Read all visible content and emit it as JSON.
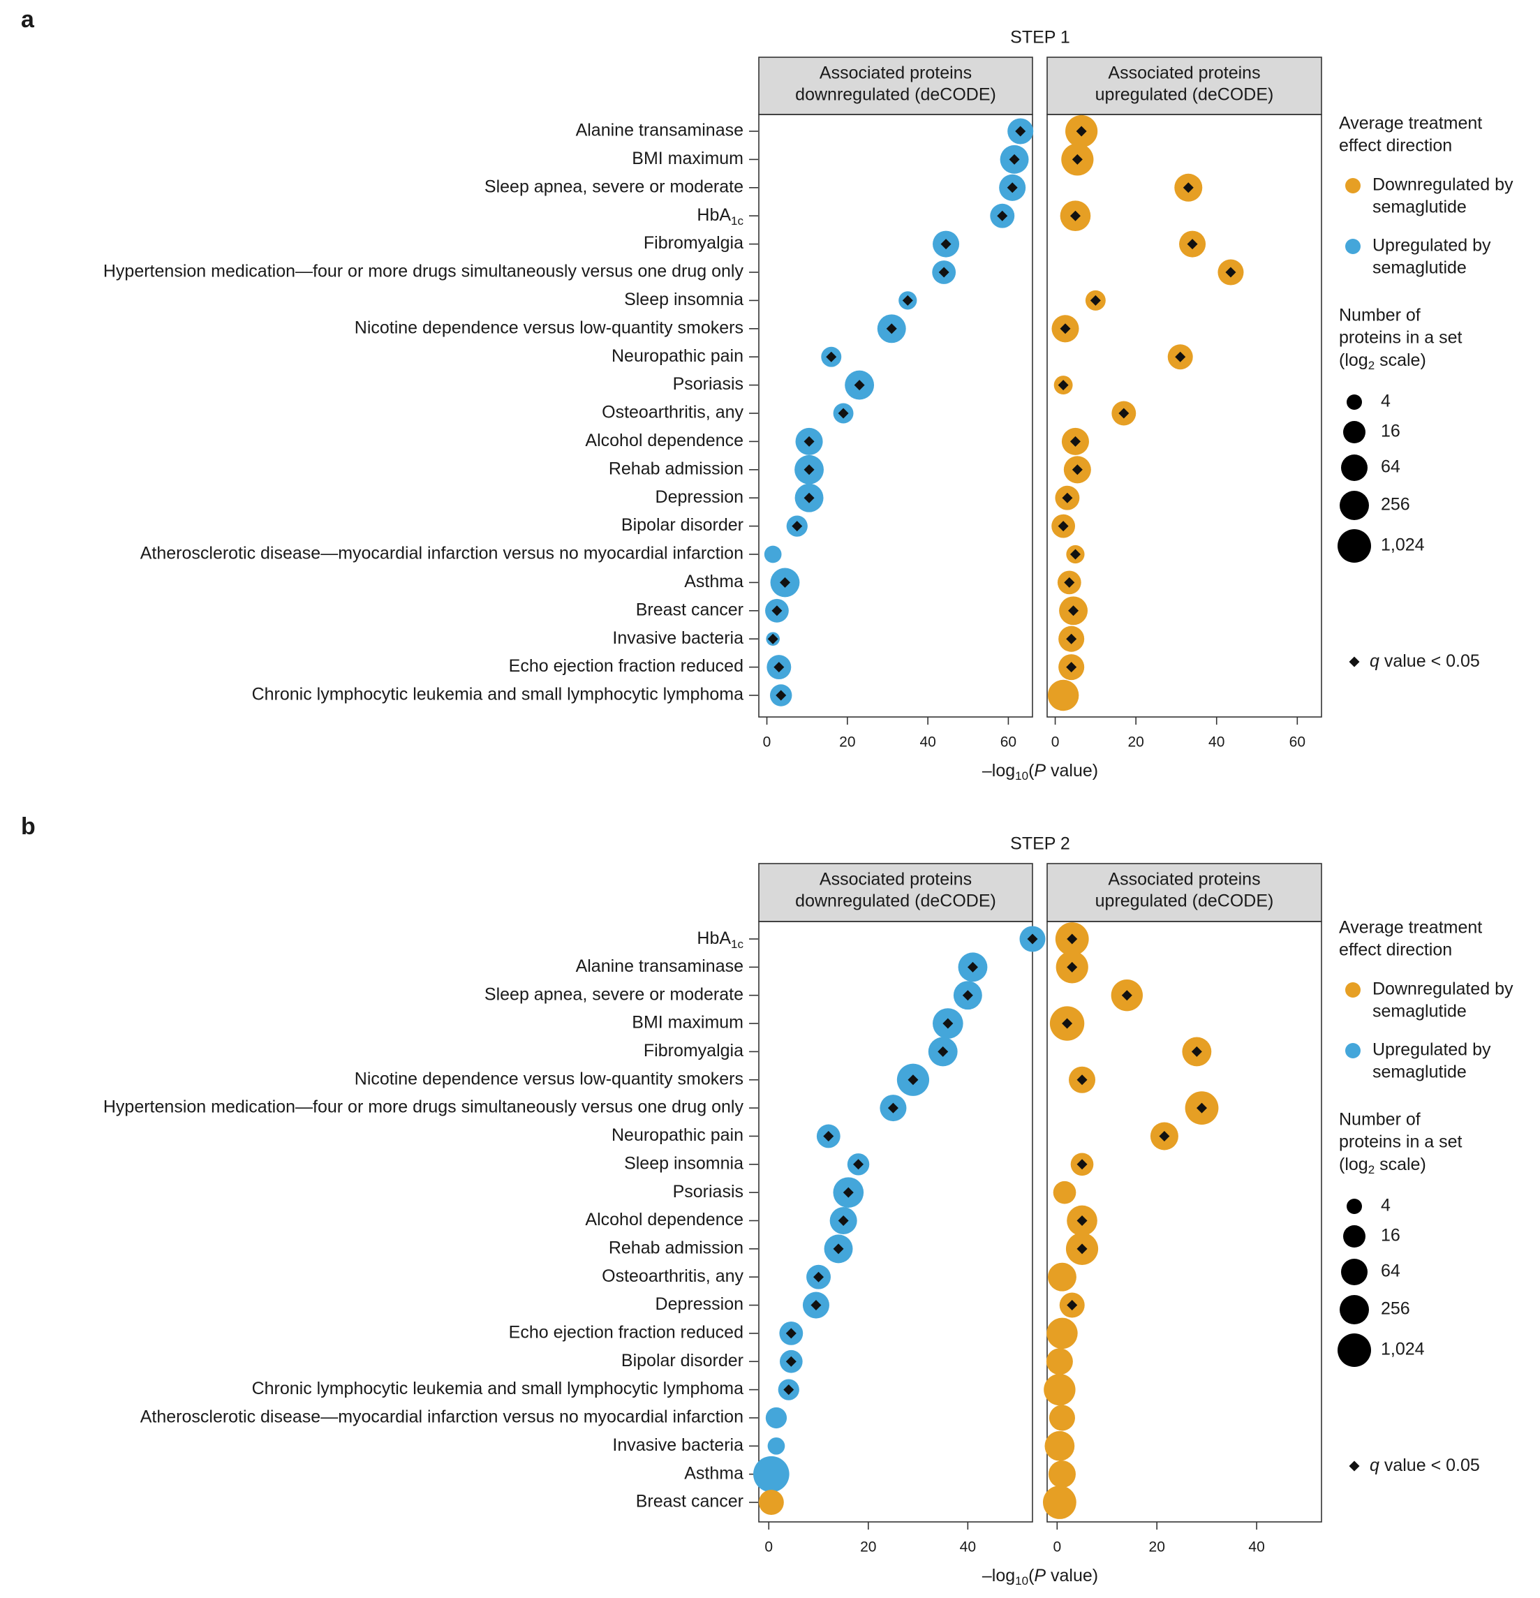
{
  "figure": {
    "legend": {
      "direction_title": [
        "Average treatment",
        "effect direction"
      ],
      "direction_items": [
        {
          "label": [
            "Downregulated by",
            "semaglutide"
          ],
          "color": "#E69F24",
          "key": "down"
        },
        {
          "label": [
            "Upregulated by",
            "semaglutide"
          ],
          "color": "#44A6DA",
          "key": "up"
        }
      ],
      "size_title": [
        "Number of",
        "proteins in a set",
        "(log",
        "2",
        " scale)"
      ],
      "size_items": [
        {
          "label": "4",
          "value": 4
        },
        {
          "label": "16",
          "value": 16
        },
        {
          "label": "64",
          "value": 64
        },
        {
          "label": "256",
          "value": 256
        },
        {
          "label": "1,024",
          "value": 1024
        }
      ],
      "q_label": "q",
      "q_text": " value < 0.05"
    }
  },
  "chart_data": [
    {
      "type": "scatter",
      "panel_letter": "a",
      "title": "STEP 1",
      "xlabel_prefix": "–log",
      "xlabel_sub": "10",
      "xlabel_paren": "(",
      "xlabel_italic": "P",
      "xlabel_suffix": " value)",
      "xlim": [
        -2,
        66
      ],
      "xticks": [
        0,
        20,
        40,
        60
      ],
      "facets": [
        "Associated proteins downregulated (deCODE)",
        "Associated proteins upregulated (deCODE)"
      ],
      "facet_lines": [
        [
          "Associated proteins",
          "downregulated (deCODE)"
        ],
        [
          "Associated proteins",
          "upregulated (deCODE)"
        ]
      ],
      "categories": [
        "Alanine transaminase",
        "BMI maximum",
        "Sleep apnea, severe or moderate",
        "HbA1c",
        "Fibromyalgia",
        "Hypertension medication—four or more drugs simultaneously versus one drug only",
        "Sleep insomnia",
        "Nicotine dependence versus low-quantity smokers",
        "Neuropathic pain",
        "Psoriasis",
        "Osteoarthritis, any",
        "Alcohol dependence",
        "Rehab admission",
        "Depression",
        "Bipolar disorder",
        "Atherosclerotic disease—myocardial infarction versus no myocardial infarction",
        "Asthma",
        "Breast cancer",
        "Invasive bacteria",
        "Echo ejection fraction reduced",
        "Chronic lymphocytic leukemia and small lymphocytic lymphoma"
      ],
      "series": [
        {
          "name": "Associated proteins downregulated (deCODE)",
          "values": [
            63,
            61.5,
            61,
            58.5,
            44.5,
            44,
            35,
            31,
            16,
            23,
            19,
            10.5,
            10.5,
            10.5,
            7.5,
            1.5,
            4.5,
            2.5,
            1.5,
            3,
            3.5
          ],
          "sizes": [
            180,
            220,
            190,
            160,
            190,
            150,
            90,
            220,
            110,
            230,
            110,
            200,
            230,
            220,
            120,
            80,
            230,
            150,
            50,
            160,
            130
          ],
          "direction": [
            "up",
            "up",
            "up",
            "up",
            "up",
            "up",
            "up",
            "up",
            "up",
            "up",
            "up",
            "up",
            "up",
            "up",
            "up",
            "up",
            "up",
            "up",
            "up",
            "up",
            "up"
          ],
          "significant": [
            true,
            true,
            true,
            true,
            true,
            true,
            true,
            true,
            true,
            true,
            true,
            true,
            true,
            true,
            true,
            false,
            true,
            true,
            true,
            true,
            true
          ]
        },
        {
          "name": "Associated proteins upregulated (deCODE)",
          "values": [
            6.5,
            5.5,
            33,
            5,
            34,
            43.5,
            10,
            2.5,
            31,
            2,
            17,
            5,
            5.5,
            3,
            2,
            5,
            3.5,
            4.5,
            4,
            4,
            2
          ],
          "sizes": [
            280,
            280,
            210,
            250,
            190,
            180,
            110,
            200,
            170,
            95,
            160,
            200,
            200,
            160,
            150,
            90,
            150,
            220,
            180,
            180,
            260
          ],
          "direction": [
            "down",
            "down",
            "down",
            "down",
            "down",
            "down",
            "down",
            "down",
            "down",
            "down",
            "down",
            "down",
            "down",
            "down",
            "down",
            "down",
            "down",
            "down",
            "down",
            "down",
            "down"
          ],
          "significant": [
            true,
            true,
            true,
            true,
            true,
            true,
            true,
            true,
            true,
            true,
            true,
            true,
            true,
            true,
            true,
            true,
            true,
            true,
            true,
            true,
            false
          ]
        }
      ]
    },
    {
      "type": "scatter",
      "panel_letter": "b",
      "title": "STEP 2",
      "xlabel_prefix": "–log",
      "xlabel_sub": "10",
      "xlabel_paren": "(",
      "xlabel_italic": "P",
      "xlabel_suffix": " value)",
      "xlim": [
        -2,
        53
      ],
      "xticks": [
        0,
        20,
        40
      ],
      "facets": [
        "Associated proteins downregulated (deCODE)",
        "Associated proteins upregulated (deCODE)"
      ],
      "facet_lines": [
        [
          "Associated proteins",
          "downregulated (deCODE)"
        ],
        [
          "Associated proteins",
          "upregulated (deCODE)"
        ]
      ],
      "categories": [
        "HbA1c",
        "Alanine transaminase",
        "Sleep apnea, severe or moderate",
        "BMI maximum",
        "Fibromyalgia",
        "Nicotine dependence versus low-quantity smokers",
        "Hypertension medication—four or more drugs simultaneously versus one drug only",
        "Neuropathic pain",
        "Sleep insomnia",
        "Psoriasis",
        "Alcohol dependence",
        "Rehab admission",
        "Osteoarthritis, any",
        "Depression",
        "Echo ejection fraction reduced",
        "Bipolar disorder",
        "Chronic lymphocytic leukemia and small lymphocytic lymphoma",
        "Atherosclerotic disease—myocardial infarction versus no myocardial infarction",
        "Invasive bacteria",
        "Asthma",
        "Breast cancer"
      ],
      "series": [
        {
          "name": "Associated proteins downregulated (deCODE)",
          "values": [
            53,
            41,
            40,
            36,
            35,
            29,
            25,
            12,
            18,
            16,
            15,
            14,
            10,
            9.5,
            4.5,
            4.5,
            4,
            1.5,
            1.5,
            0.5,
            0.5
          ],
          "sizes": [
            180,
            230,
            220,
            250,
            230,
            280,
            190,
            150,
            130,
            250,
            200,
            220,
            160,
            190,
            150,
            140,
            120,
            120,
            80,
            350,
            170
          ],
          "direction": [
            "up",
            "up",
            "up",
            "up",
            "up",
            "up",
            "up",
            "up",
            "up",
            "up",
            "up",
            "up",
            "up",
            "up",
            "up",
            "up",
            "up",
            "up",
            "up",
            "up",
            "down"
          ],
          "significant": [
            true,
            true,
            true,
            true,
            true,
            true,
            true,
            true,
            true,
            true,
            true,
            true,
            true,
            true,
            true,
            true,
            true,
            false,
            false,
            false,
            false
          ]
        },
        {
          "name": "Associated proteins upregulated (deCODE)",
          "values": [
            3,
            3,
            14,
            2,
            28,
            5,
            29,
            21.5,
            5,
            1.5,
            5,
            5,
            1,
            3,
            1,
            0.5,
            0.5,
            1,
            0.5,
            1,
            0.5
          ],
          "sizes": [
            300,
            280,
            270,
            320,
            230,
            190,
            300,
            210,
            140,
            140,
            250,
            280,
            220,
            170,
            260,
            190,
            270,
            180,
            240,
            200,
            300
          ],
          "direction": [
            "down",
            "down",
            "down",
            "down",
            "down",
            "down",
            "down",
            "down",
            "down",
            "down",
            "down",
            "down",
            "down",
            "down",
            "down",
            "down",
            "down",
            "down",
            "down",
            "down",
            "down"
          ],
          "significant": [
            true,
            true,
            true,
            true,
            true,
            true,
            true,
            true,
            true,
            false,
            true,
            true,
            false,
            true,
            false,
            false,
            false,
            false,
            false,
            false,
            false
          ]
        }
      ]
    }
  ]
}
